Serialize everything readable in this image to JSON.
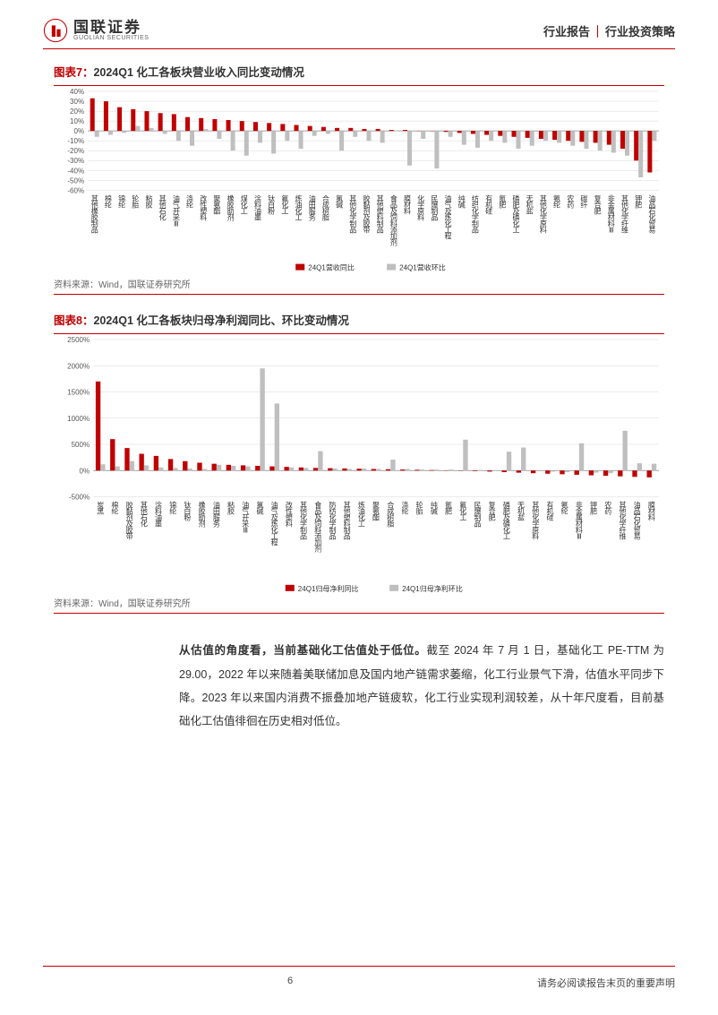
{
  "header": {
    "logo_cn": "国联证券",
    "logo_en": "GUOLIAN SECURITIES",
    "right_a": "行业报告",
    "right_b": "行业投资策略"
  },
  "chart7": {
    "title_prefix": "图表7：",
    "title": "2024Q1 化工各板块营业收入同比变动情况",
    "type": "grouped-bar",
    "ylim": [
      -60,
      40
    ],
    "ytick_step": 10,
    "yformat": "%",
    "grid_color": "#d9d9d9",
    "axis_color": "#888888",
    "bar_colors": [
      "#c00000",
      "#bfbfbf"
    ],
    "label_fontsize": 8,
    "categories": [
      "其他橡胶制品",
      "棉纶",
      "锦纶",
      "轮胎",
      "粘胶",
      "其他石化",
      "油气开采Ⅲ",
      "涤纶",
      "改性塑料",
      "聚氨酯",
      "橡胶助剂",
      "煤化工",
      "涂料油墨",
      "钛白粉",
      "氟化工",
      "炼油化工",
      "油田服务",
      "合成树脂",
      "氯碱",
      "其他化学制品",
      "胶黏剂及胶带",
      "其他塑料制品",
      "食品及饲料添加剂",
      "膜材料",
      "化学原料",
      "民爆制品",
      "油气及炼化工程",
      "纯碱",
      "纺织化学制品",
      "有机硅",
      "氮肥",
      "磷肥及磷化工",
      "无机盐",
      "其他化学原料",
      "氨纶",
      "农药",
      "碳纤",
      "复合肥",
      "非金属材料Ⅲ",
      "其他化学纤维",
      "钾肥",
      "油品石化贸易"
    ],
    "series": [
      {
        "name": "24Q1营收同比",
        "values": [
          33,
          30,
          24,
          22,
          20,
          18,
          17,
          14,
          13,
          12,
          11,
          10,
          9,
          8,
          7,
          6,
          5,
          4,
          3,
          3,
          2,
          2,
          1,
          1,
          0,
          0,
          -1,
          -2,
          -3,
          -4,
          -5,
          -6,
          -7,
          -8,
          -9,
          -10,
          -11,
          -12,
          -14,
          -18,
          -30,
          -42
        ]
      },
      {
        "name": "24Q1营收环比",
        "values": [
          -6,
          -4,
          -2,
          5,
          3,
          -3,
          -10,
          -15,
          2,
          -8,
          -20,
          -25,
          -12,
          -23,
          -10,
          -18,
          -5,
          -3,
          -20,
          -6,
          -10,
          -12,
          0,
          -35,
          -8,
          -38,
          -6,
          -14,
          -17,
          -10,
          -12,
          -18,
          -15,
          -10,
          -12,
          -15,
          -18,
          -20,
          -22,
          -25,
          -47,
          -10
        ]
      }
    ],
    "source": "资料来源：Wind，国联证券研究所"
  },
  "chart8": {
    "title_prefix": "图表8：",
    "title": "2024Q1 化工各板块归母净利润同比、环比变动情况",
    "type": "grouped-bar",
    "ylim": [
      -500,
      2500
    ],
    "ytick_step": 500,
    "yformat": "%",
    "grid_color": "#d9d9d9",
    "axis_color": "#888888",
    "bar_colors": [
      "#c00000",
      "#bfbfbf"
    ],
    "label_fontsize": 8,
    "categories": [
      "炭黑",
      "棉纶",
      "胶黏剂及胶带",
      "其他石化",
      "涂料油墨",
      "锦纶",
      "钛白粉",
      "橡胶助剂",
      "油田服务",
      "粘胶",
      "油气开采Ⅲ",
      "氯碱",
      "油气及炼化工程",
      "改性塑料",
      "其他化学制品",
      "食品及饲料添加剂",
      "防纺化学制品",
      "其他塑料制品",
      "炼油化工",
      "聚氨酯",
      "合成树脂",
      "涤纶",
      "轮胎",
      "纯碱",
      "氮肥",
      "氟化工",
      "民爆制品",
      "复合肥",
      "磷肥及磷化工",
      "无机盐",
      "其他化学原料",
      "有机硅",
      "氨纶",
      "非金属材料Ⅲ",
      "钾肥",
      "农药",
      "其他化学纤维",
      "油品石化贸易",
      "膜材料"
    ],
    "series": [
      {
        "name": "24Q1归母净利同比",
        "values": [
          1700,
          600,
          430,
          320,
          280,
          220,
          180,
          150,
          130,
          110,
          100,
          90,
          80,
          70,
          60,
          50,
          45,
          40,
          35,
          30,
          25,
          20,
          15,
          10,
          5,
          0,
          -10,
          -20,
          -30,
          -40,
          -50,
          -60,
          -70,
          -80,
          -90,
          -100,
          -110,
          -120,
          -130
        ]
      },
      {
        "name": "24Q1归母净利环比",
        "values": [
          120,
          80,
          180,
          100,
          60,
          50,
          40,
          30,
          110,
          90,
          80,
          1950,
          1280,
          60,
          50,
          370,
          40,
          30,
          40,
          30,
          210,
          30,
          20,
          20,
          20,
          590,
          10,
          10,
          360,
          440,
          -10,
          -20,
          -30,
          520,
          -40,
          -50,
          760,
          140,
          130
        ]
      }
    ],
    "source": "资料来源：Wind，国联证券研究所"
  },
  "body": {
    "p1_bold": "从估值的角度看，当前基础化工估值处于低位。",
    "p1_rest": "截至 2024 年 7 月 1 日，基础化工 PE-TTM 为 29.00，2022 年以来随着美联储加息及国内地产链需求萎缩，化工行业景气下滑，估值水平同步下降。2023 年以来国内消费不振叠加地产链疲软，化工行业实现利润较差，从十年尺度看，目前基础化工估值徘徊在历史相对低位。"
  },
  "footer": {
    "page": "6",
    "note": "请务必阅读报告末页的重要声明"
  },
  "colors": {
    "brand": "#c00000"
  }
}
